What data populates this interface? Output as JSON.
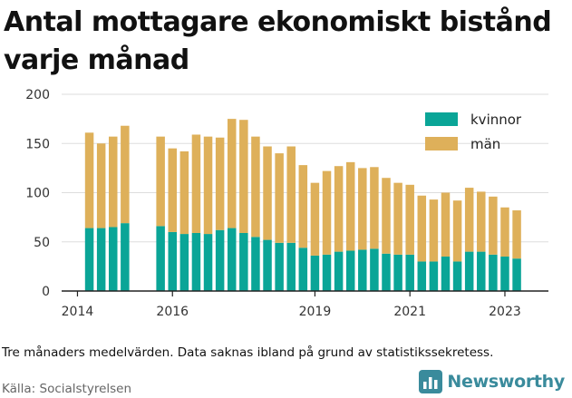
{
  "title": "Antal mottagare ekonomiskt bistånd varje månad",
  "caption": "Tre månaders medelvärden. Data saknas ibland på grund av statistikssekretess.",
  "source": "Källa: Socialstyrelsen",
  "brand": {
    "name": "Newsworthy",
    "icon": "bar-chart-logo-icon",
    "color": "#3a8b9c"
  },
  "colors": {
    "kvinnor": "#0aa597",
    "man": "#deb05a",
    "grid": "#dddddd"
  },
  "chart_data": {
    "type": "bar",
    "stacked": true,
    "title": "Antal mottagare ekonomiskt bistånd varje månad",
    "xlabel": "",
    "ylabel": "",
    "ylim": [
      0,
      200
    ],
    "yticks": [
      0,
      50,
      100,
      150,
      200
    ],
    "xticks": [
      "2014",
      "2016",
      "2019",
      "2021",
      "2023"
    ],
    "xlim": [
      "2013-09",
      "2023-12"
    ],
    "grid": true,
    "legend_position": "top-right",
    "x": [
      "2014-04",
      "2014-07",
      "2014-10",
      "2015-01",
      "2015-10",
      "2016-01",
      "2016-04",
      "2016-07",
      "2016-10",
      "2017-01",
      "2017-04",
      "2017-07",
      "2017-10",
      "2018-01",
      "2018-04",
      "2018-07",
      "2018-10",
      "2019-01",
      "2019-04",
      "2019-07",
      "2019-10",
      "2020-01",
      "2020-04",
      "2020-07",
      "2020-10",
      "2021-01",
      "2021-04",
      "2021-07",
      "2021-10",
      "2022-01",
      "2022-04",
      "2022-07",
      "2022-10",
      "2023-01",
      "2023-04"
    ],
    "series": [
      {
        "name": "kvinnor",
        "values": [
          64,
          64,
          65,
          69,
          66,
          60,
          58,
          59,
          58,
          62,
          64,
          59,
          55,
          52,
          49,
          49,
          44,
          36,
          37,
          40,
          41,
          42,
          43,
          38,
          37,
          37,
          30,
          30,
          35,
          30,
          40,
          40,
          37,
          35,
          33
        ]
      },
      {
        "name": "män",
        "values": [
          97,
          86,
          92,
          99,
          91,
          85,
          84,
          100,
          99,
          94,
          111,
          115,
          102,
          95,
          91,
          98,
          84,
          74,
          85,
          87,
          90,
          83,
          83,
          77,
          73,
          71,
          67,
          63,
          65,
          62,
          65,
          61,
          59,
          50,
          49
        ]
      }
    ]
  }
}
